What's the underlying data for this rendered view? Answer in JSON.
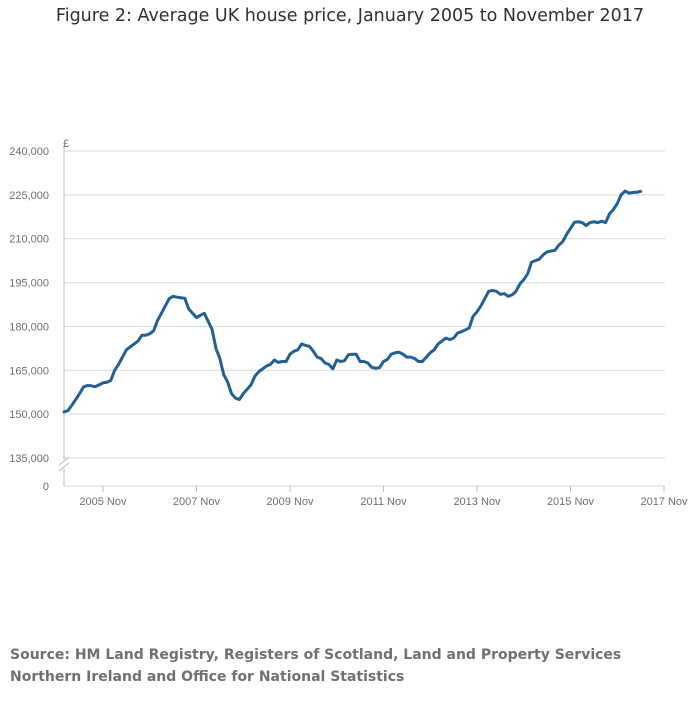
{
  "title": "Figure 2: Average UK house price, January 2005 to November 2017",
  "source": "Source: HM Land Registry, Registers of Scotland, Land and Property Services Northern Ireland and Office for National Statistics",
  "colors": {
    "line": "#206095",
    "grid": "#d9d9d9",
    "axis": "#bebebe",
    "text": "#707071"
  },
  "chart_data": {
    "type": "line",
    "title": "Figure 2: Average UK house price, January 2005 to November 2017",
    "ylabel": "£",
    "xlabel": "",
    "ylim": [
      135000,
      240000
    ],
    "y_ticks": [
      {
        "value": 240000,
        "label": "240,000"
      },
      {
        "value": 225000,
        "label": "225,000"
      },
      {
        "value": 210000,
        "label": "210,000"
      },
      {
        "value": 195000,
        "label": "195,000"
      },
      {
        "value": 180000,
        "label": "180,000"
      },
      {
        "value": 165000,
        "label": "165,000"
      },
      {
        "value": 150000,
        "label": "150,000"
      },
      {
        "value": 135000,
        "label": "135,000"
      }
    ],
    "y_zero_label": "0",
    "y_axis_break": true,
    "x_ticks": [
      {
        "date": "2005-11",
        "label": "2005 Nov"
      },
      {
        "date": "2007-11",
        "label": "2007 Nov"
      },
      {
        "date": "2009-11",
        "label": "2009 Nov"
      },
      {
        "date": "2011-11",
        "label": "2011 Nov"
      },
      {
        "date": "2013-11",
        "label": "2013 Nov"
      },
      {
        "date": "2015-11",
        "label": "2015 Nov"
      },
      {
        "date": "2017-11",
        "label": "2017 Nov"
      }
    ],
    "x_range": [
      "2005-01",
      "2017-11"
    ],
    "grid": true,
    "legend": "none",
    "series": [
      {
        "points": [
          [
            "2005-01",
            150800
          ],
          [
            "2005-02",
            151200
          ],
          [
            "2005-03",
            153000
          ],
          [
            "2005-04",
            155000
          ],
          [
            "2005-05",
            157000
          ],
          [
            "2005-06",
            159300
          ],
          [
            "2005-07",
            159800
          ],
          [
            "2005-08",
            159700
          ],
          [
            "2005-09",
            159400
          ],
          [
            "2005-10",
            160000
          ],
          [
            "2005-11",
            160700
          ],
          [
            "2005-12",
            160900
          ],
          [
            "2006-01",
            161500
          ],
          [
            "2006-02",
            165000
          ],
          [
            "2006-03",
            167000
          ],
          [
            "2006-04",
            169500
          ],
          [
            "2006-05",
            172000
          ],
          [
            "2006-06",
            173000
          ],
          [
            "2006-07",
            174000
          ],
          [
            "2006-08",
            175000
          ],
          [
            "2006-09",
            177000
          ],
          [
            "2006-10",
            177000
          ],
          [
            "2006-11",
            177500
          ],
          [
            "2006-12",
            178500
          ],
          [
            "2007-01",
            182000
          ],
          [
            "2007-02",
            184500
          ],
          [
            "2007-03",
            187000
          ],
          [
            "2007-04",
            189500
          ],
          [
            "2007-05",
            190300
          ],
          [
            "2007-06",
            190000
          ],
          [
            "2007-07",
            189800
          ],
          [
            "2007-08",
            189600
          ],
          [
            "2007-09",
            186000
          ],
          [
            "2007-10",
            184500
          ],
          [
            "2007-11",
            183000
          ],
          [
            "2007-12",
            183800
          ],
          [
            "2008-01",
            184500
          ],
          [
            "2008-02",
            181800
          ],
          [
            "2008-03",
            179000
          ],
          [
            "2008-04",
            172500
          ],
          [
            "2008-05",
            169000
          ],
          [
            "2008-06",
            163500
          ],
          [
            "2008-07",
            161000
          ],
          [
            "2008-08",
            157000
          ],
          [
            "2008-09",
            155500
          ],
          [
            "2008-10",
            155000
          ],
          [
            "2008-11",
            157000
          ],
          [
            "2008-12",
            158500
          ],
          [
            "2009-01",
            160000
          ],
          [
            "2009-02",
            163000
          ],
          [
            "2009-03",
            164500
          ],
          [
            "2009-04",
            165500
          ],
          [
            "2009-05",
            166500
          ],
          [
            "2009-06",
            167000
          ],
          [
            "2009-07",
            168500
          ],
          [
            "2009-08",
            167700
          ],
          [
            "2009-09",
            168000
          ],
          [
            "2009-10",
            168000
          ],
          [
            "2009-11",
            170500
          ],
          [
            "2009-12",
            171500
          ],
          [
            "2010-01",
            172000
          ],
          [
            "2010-02",
            174000
          ],
          [
            "2010-03",
            173500
          ],
          [
            "2010-04",
            173200
          ],
          [
            "2010-05",
            171500
          ],
          [
            "2010-06",
            169500
          ],
          [
            "2010-07",
            169000
          ],
          [
            "2010-08",
            167500
          ],
          [
            "2010-09",
            167000
          ],
          [
            "2010-10",
            165500
          ],
          [
            "2010-11",
            168500
          ],
          [
            "2010-12",
            168000
          ],
          [
            "2011-01",
            168300
          ],
          [
            "2011-02",
            170300
          ],
          [
            "2011-03",
            170500
          ],
          [
            "2011-04",
            170500
          ],
          [
            "2011-05",
            168000
          ],
          [
            "2011-06",
            168000
          ],
          [
            "2011-07",
            167500
          ],
          [
            "2011-08",
            166000
          ],
          [
            "2011-09",
            165700
          ],
          [
            "2011-10",
            165900
          ],
          [
            "2011-11",
            168000
          ],
          [
            "2011-12",
            168700
          ],
          [
            "2012-01",
            170500
          ],
          [
            "2012-02",
            171000
          ],
          [
            "2012-03",
            171200
          ],
          [
            "2012-04",
            170500
          ],
          [
            "2012-05",
            169500
          ],
          [
            "2012-06",
            169500
          ],
          [
            "2012-07",
            169000
          ],
          [
            "2012-08",
            168000
          ],
          [
            "2012-09",
            168000
          ],
          [
            "2012-10",
            169500
          ],
          [
            "2012-11",
            171000
          ],
          [
            "2012-12",
            172000
          ],
          [
            "2013-01",
            174000
          ],
          [
            "2013-02",
            175000
          ],
          [
            "2013-03",
            176000
          ],
          [
            "2013-04",
            175500
          ],
          [
            "2013-05",
            176000
          ],
          [
            "2013-06",
            177700
          ],
          [
            "2013-07",
            178200
          ],
          [
            "2013-08",
            178800
          ],
          [
            "2013-09",
            179500
          ],
          [
            "2013-10",
            183500
          ],
          [
            "2013-11",
            185000
          ],
          [
            "2013-12",
            187000
          ],
          [
            "2014-01",
            189500
          ],
          [
            "2014-02",
            192000
          ],
          [
            "2014-03",
            192300
          ],
          [
            "2014-04",
            192000
          ],
          [
            "2014-05",
            191000
          ],
          [
            "2014-06",
            191200
          ],
          [
            "2014-07",
            190300
          ],
          [
            "2014-08",
            190800
          ],
          [
            "2014-09",
            192000
          ],
          [
            "2014-10",
            194500
          ],
          [
            "2014-11",
            196000
          ],
          [
            "2014-12",
            198000
          ],
          [
            "2015-01",
            202000
          ],
          [
            "2015-02",
            202500
          ],
          [
            "2015-03",
            203000
          ],
          [
            "2015-04",
            204500
          ],
          [
            "2015-05",
            205500
          ],
          [
            "2015-06",
            205800
          ],
          [
            "2015-07",
            206000
          ],
          [
            "2015-08",
            207800
          ],
          [
            "2015-09",
            209000
          ],
          [
            "2015-10",
            211500
          ],
          [
            "2015-11",
            213500
          ],
          [
            "2015-12",
            215600
          ],
          [
            "2016-01",
            215800
          ],
          [
            "2016-02",
            215500
          ],
          [
            "2016-03",
            214500
          ],
          [
            "2016-04",
            215500
          ],
          [
            "2016-05",
            215800
          ],
          [
            "2016-06",
            215500
          ],
          [
            "2016-07",
            216000
          ],
          [
            "2016-08",
            215500
          ],
          [
            "2016-09",
            218500
          ],
          [
            "2016-10",
            220000
          ],
          [
            "2016-11",
            222000
          ],
          [
            "2016-12",
            225000
          ],
          [
            "2017-01",
            226300
          ],
          [
            "2017-02",
            225600
          ],
          [
            "2017-03",
            225800
          ],
          [
            "2017-04",
            225900
          ],
          [
            "2017-05",
            226200
          ]
        ]
      }
    ]
  }
}
